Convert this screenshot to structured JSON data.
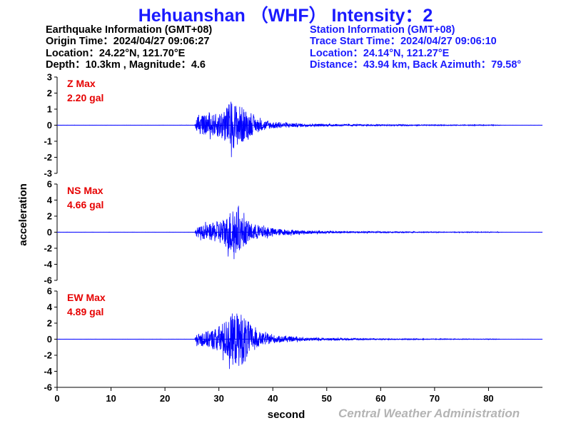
{
  "header": {
    "title": "Hehuanshan （WHF） Intensity：2"
  },
  "earthquake_info": {
    "heading": "Earthquake Information  (GMT+08)",
    "origin_time": "Origin Time：2024/04/27 09:06:27",
    "location": "Location：24.22°N, 121.70°E",
    "depth_magnitude": "Depth：10.3km , Magnitude：4.6"
  },
  "station_info": {
    "heading": "Station Information  (GMT+08)",
    "trace_start": "Trace Start Time：2024/04/27 09:06:10",
    "location": "Location：24.14°N, 121.27°E",
    "distance": "Distance：43.94 km, Back Azimuth：79.58°"
  },
  "footer": {
    "agency": "Central Weather Administration"
  },
  "colors": {
    "title": "#1a1aff",
    "trace": "#0000ff",
    "peak_label": "#e60000",
    "footer": "#b4b4b4"
  },
  "chart_data": {
    "type": "line",
    "xlabel": "second",
    "ylabel": "acceleration",
    "xlim": [
      0,
      90
    ],
    "xticks": [
      0,
      10,
      20,
      30,
      40,
      50,
      60,
      70,
      80
    ],
    "grid": false,
    "series": [
      {
        "name": "Z",
        "peak_label": "Z Max",
        "peak_value_label": "2.20 gal",
        "peak_gal": 2.2,
        "ylim": [
          -3,
          3
        ],
        "yticks": [
          -3,
          -2,
          -1,
          0,
          1,
          2,
          3
        ],
        "envelope": [
          [
            0,
            0.01
          ],
          [
            25.5,
            0.01
          ],
          [
            25.9,
            0.7
          ],
          [
            27,
            0.85
          ],
          [
            28.5,
            0.9
          ],
          [
            30,
            1.1
          ],
          [
            31.3,
            1.6
          ],
          [
            32.3,
            2.2
          ],
          [
            33.2,
            1.9
          ],
          [
            34.2,
            1.7
          ],
          [
            35.5,
            1.1
          ],
          [
            37,
            0.6
          ],
          [
            39,
            0.35
          ],
          [
            42,
            0.22
          ],
          [
            46,
            0.14
          ],
          [
            50,
            0.1
          ],
          [
            55,
            0.07
          ],
          [
            60,
            0.06
          ],
          [
            70,
            0.04
          ],
          [
            82,
            0.03
          ],
          [
            82.5,
            0.01
          ],
          [
            90,
            0.01
          ]
        ]
      },
      {
        "name": "NS",
        "peak_label": "NS Max",
        "peak_value_label": "4.66 gal",
        "peak_gal": 4.66,
        "ylim": [
          -6,
          6
        ],
        "yticks": [
          -6,
          -4,
          -2,
          0,
          2,
          4,
          6
        ],
        "envelope": [
          [
            0,
            0.02
          ],
          [
            25.5,
            0.02
          ],
          [
            25.9,
            0.8
          ],
          [
            27,
            1.2
          ],
          [
            28.5,
            1.5
          ],
          [
            30,
            2.0
          ],
          [
            31.5,
            2.8
          ],
          [
            32.5,
            4.66
          ],
          [
            33.3,
            3.8
          ],
          [
            34.5,
            2.6
          ],
          [
            36,
            1.6
          ],
          [
            38,
            1.0
          ],
          [
            41,
            0.6
          ],
          [
            45,
            0.35
          ],
          [
            50,
            0.22
          ],
          [
            55,
            0.15
          ],
          [
            60,
            0.11
          ],
          [
            70,
            0.07
          ],
          [
            82,
            0.05
          ],
          [
            82.5,
            0.02
          ],
          [
            90,
            0.02
          ]
        ]
      },
      {
        "name": "EW",
        "peak_label": "EW Max",
        "peak_value_label": "4.89 gal",
        "peak_gal": 4.89,
        "ylim": [
          -6,
          6
        ],
        "yticks": [
          -6,
          -4,
          -2,
          0,
          2,
          4,
          6
        ],
        "envelope": [
          [
            0,
            0.02
          ],
          [
            25.5,
            0.02
          ],
          [
            25.9,
            0.9
          ],
          [
            27,
            1.3
          ],
          [
            28.5,
            1.6
          ],
          [
            30,
            2.4
          ],
          [
            31.5,
            3.6
          ],
          [
            32.5,
            4.6
          ],
          [
            34,
            4.89
          ],
          [
            35,
            3.8
          ],
          [
            36.5,
            1.8
          ],
          [
            38,
            1.1
          ],
          [
            41,
            0.6
          ],
          [
            45,
            0.35
          ],
          [
            50,
            0.22
          ],
          [
            55,
            0.15
          ],
          [
            60,
            0.11
          ],
          [
            70,
            0.07
          ],
          [
            82,
            0.05
          ],
          [
            82.5,
            0.02
          ],
          [
            90,
            0.02
          ]
        ]
      }
    ]
  }
}
